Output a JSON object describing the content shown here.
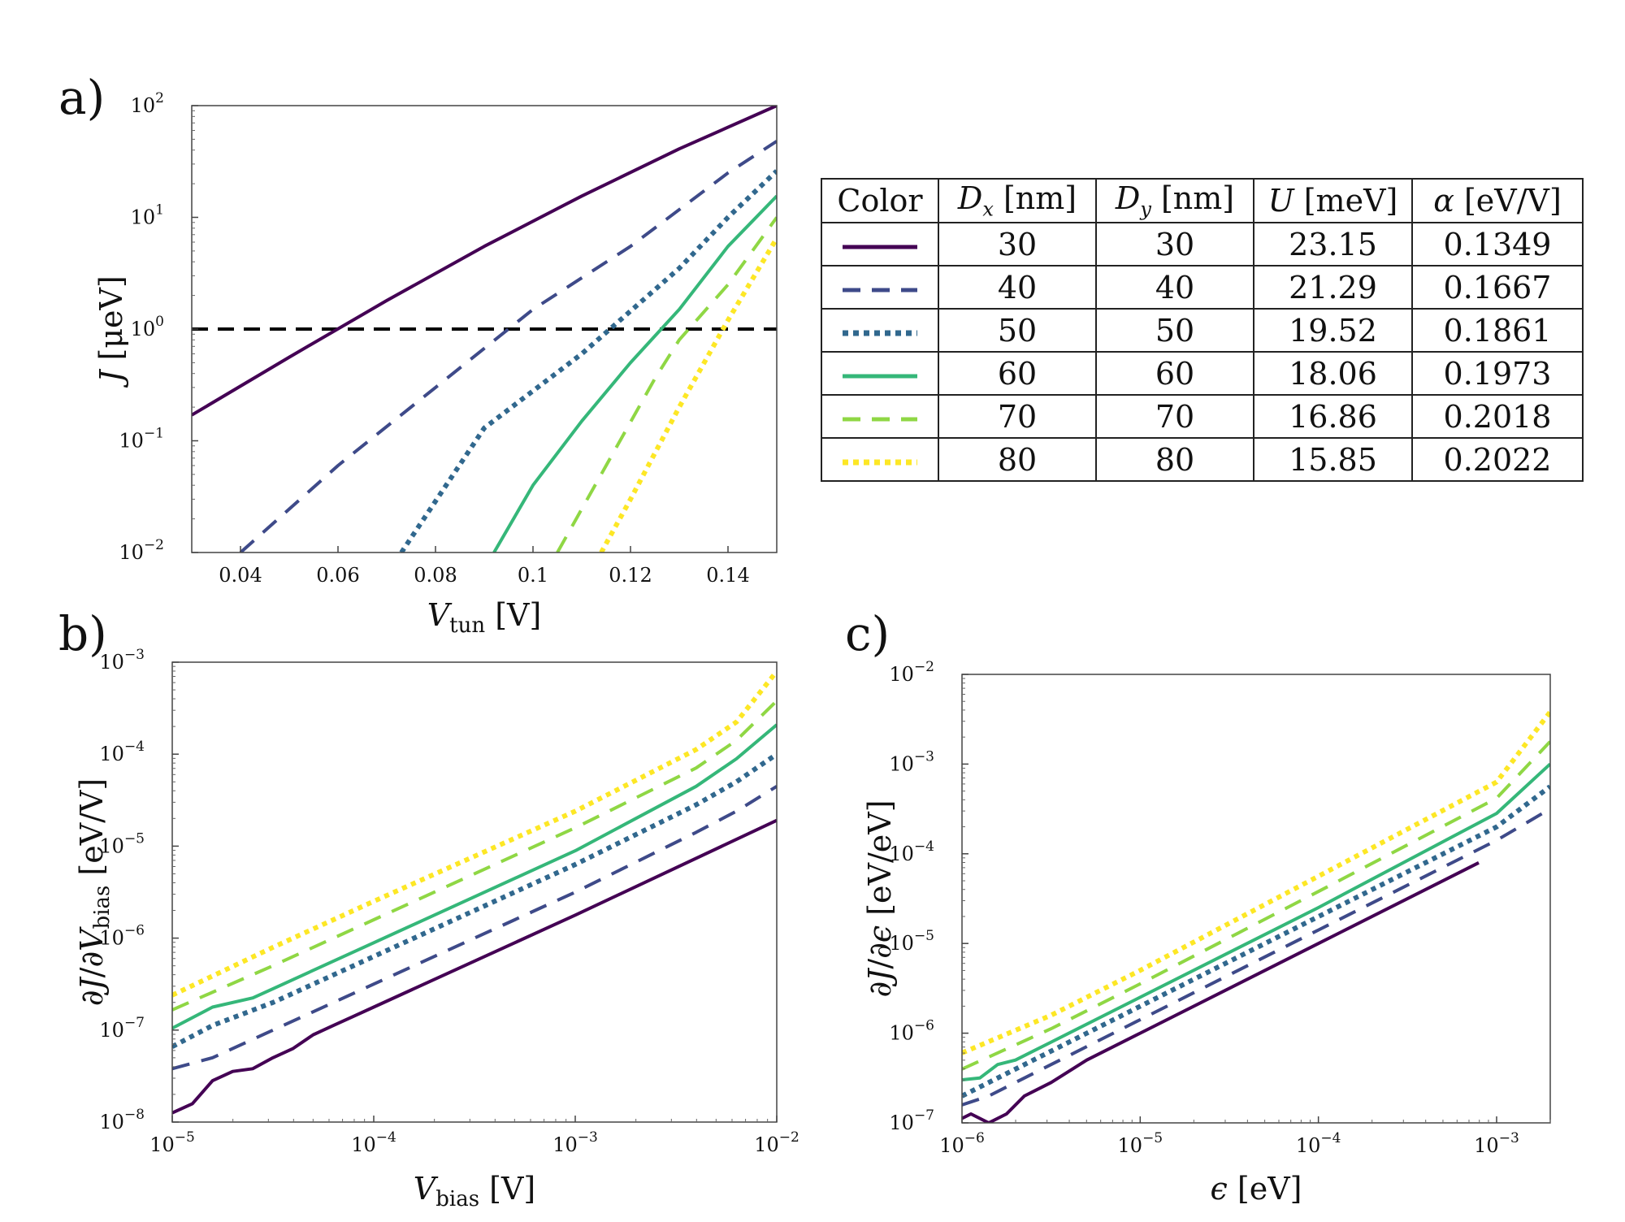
{
  "panel_labels": {
    "a": "a)",
    "b": "b)",
    "c": "c)"
  },
  "colors": [
    "#440154",
    "#3e4a89",
    "#31688e",
    "#35b779",
    "#8fd744",
    "#fde725"
  ],
  "table": {
    "headers": [
      "Color",
      "Dx [nm]",
      "Dy [nm]",
      "U [meV]",
      "α [eV/V]"
    ],
    "rows": [
      {
        "style": "solid",
        "dx": "30",
        "dy": "30",
        "u": "23.15",
        "alpha": "0.1349"
      },
      {
        "style": "dashed",
        "dx": "40",
        "dy": "40",
        "u": "21.29",
        "alpha": "0.1667"
      },
      {
        "style": "dotted",
        "dx": "50",
        "dy": "50",
        "u": "19.52",
        "alpha": "0.1861"
      },
      {
        "style": "solid",
        "dx": "60",
        "dy": "60",
        "u": "18.06",
        "alpha": "0.1973"
      },
      {
        "style": "dashed",
        "dx": "70",
        "dy": "70",
        "u": "16.86",
        "alpha": "0.2018"
      },
      {
        "style": "dotted",
        "dx": "80",
        "dy": "80",
        "u": "15.85",
        "alpha": "0.2022"
      }
    ]
  },
  "chart_data": [
    {
      "id": "a",
      "type": "line",
      "xscale": "linear",
      "yscale": "log",
      "xlim": [
        0.03,
        0.15
      ],
      "ylim": [
        0.01,
        100
      ],
      "xlabel": "Vtun [V]",
      "ylabel": "J [μeV]",
      "xticks": [
        0.04,
        0.06,
        0.08,
        0.1,
        0.12,
        0.14
      ],
      "xticklabels": [
        "0.04",
        "0.06",
        "0.08",
        "0.1",
        "0.12",
        "0.14"
      ],
      "yticks": [
        -2,
        -1,
        0,
        1,
        2
      ],
      "reference_line": {
        "y": 1,
        "style": "dashed",
        "color": "#000000"
      },
      "series": [
        {
          "name": "30",
          "style": "solid",
          "x": [
            0.03,
            0.05,
            0.07,
            0.09,
            0.11,
            0.13,
            0.15
          ],
          "y": [
            0.17,
            0.56,
            1.8,
            5.5,
            15.5,
            41,
            100
          ]
        },
        {
          "name": "40",
          "style": "dashed",
          "x": [
            0.04,
            0.06,
            0.08,
            0.1,
            0.12,
            0.14,
            0.15
          ],
          "y": [
            0.01,
            0.06,
            0.3,
            1.5,
            5.5,
            25,
            48
          ]
        },
        {
          "name": "50",
          "style": "dotted",
          "x": [
            0.073,
            0.09,
            0.11,
            0.13,
            0.14,
            0.15
          ],
          "y": [
            0.01,
            0.13,
            0.6,
            3.5,
            10,
            26
          ]
        },
        {
          "name": "60",
          "style": "solid",
          "x": [
            0.092,
            0.1,
            0.11,
            0.12,
            0.13,
            0.14,
            0.15
          ],
          "y": [
            0.01,
            0.04,
            0.15,
            0.5,
            1.5,
            5.5,
            15.5
          ]
        },
        {
          "name": "70",
          "style": "dashed",
          "x": [
            0.105,
            0.115,
            0.125,
            0.13,
            0.14,
            0.15
          ],
          "y": [
            0.01,
            0.06,
            0.36,
            0.8,
            2.5,
            10
          ]
        },
        {
          "name": "80",
          "style": "dotted",
          "x": [
            0.114,
            0.12,
            0.13,
            0.14,
            0.15
          ],
          "y": [
            0.01,
            0.03,
            0.2,
            1.2,
            6.5
          ]
        }
      ]
    },
    {
      "id": "b",
      "type": "line",
      "xscale": "log",
      "yscale": "log",
      "xlim": [
        1e-05,
        0.01
      ],
      "ylim": [
        1e-08,
        0.001
      ],
      "xlabel": "Vbias [V]",
      "ylabel": "∂J/∂Vbias [eV/V]",
      "xticks": [
        -5,
        -4,
        -3,
        -2
      ],
      "yticks": [
        -8,
        -7,
        -6,
        -5,
        -4,
        -3
      ],
      "series": [
        {
          "name": "30",
          "style": "solid",
          "logx": [
            -5,
            -4.9,
            -4.8,
            -4.7,
            -4.6,
            -4.5,
            -4.4,
            -4.3,
            -4.2,
            -4.1,
            -4.0,
            -3.0,
            -2.0
          ],
          "logy": [
            -7.9,
            -7.8,
            -7.55,
            -7.45,
            -7.42,
            -7.3,
            -7.2,
            -7.05,
            -6.95,
            -6.85,
            -6.75,
            -5.75,
            -4.72
          ]
        },
        {
          "name": "40",
          "style": "dashed",
          "logx": [
            -5,
            -4.8,
            -4.5,
            -4.0,
            -3.0,
            -2.4,
            -2.2,
            -2.0
          ],
          "logy": [
            -7.42,
            -7.3,
            -7.0,
            -6.5,
            -5.5,
            -4.85,
            -4.62,
            -4.35
          ]
        },
        {
          "name": "50",
          "style": "dotted",
          "logx": [
            -5,
            -4.8,
            -4.5,
            -4.0,
            -3.0,
            -2.4,
            -2.2,
            -2.0
          ],
          "logy": [
            -7.18,
            -6.95,
            -6.7,
            -6.2,
            -5.2,
            -4.55,
            -4.3,
            -4.0
          ]
        },
        {
          "name": "60",
          "style": "solid",
          "logx": [
            -5,
            -4.8,
            -4.6,
            -4.5,
            -4.0,
            -3.0,
            -2.4,
            -2.2,
            -2.0
          ],
          "logy": [
            -6.98,
            -6.75,
            -6.65,
            -6.55,
            -6.05,
            -5.05,
            -4.35,
            -4.05,
            -3.68
          ]
        },
        {
          "name": "70",
          "style": "dashed",
          "logx": [
            -5,
            -4.5,
            -4.0,
            -3.0,
            -2.4,
            -2.2,
            -2.0
          ],
          "logy": [
            -6.78,
            -6.3,
            -5.8,
            -4.8,
            -4.15,
            -3.85,
            -3.42
          ]
        },
        {
          "name": "80",
          "style": "dotted",
          "logx": [
            -5,
            -4.5,
            -4.0,
            -3.0,
            -2.4,
            -2.2,
            -2.0
          ],
          "logy": [
            -6.62,
            -6.1,
            -5.6,
            -4.62,
            -3.95,
            -3.65,
            -3.1
          ]
        }
      ]
    },
    {
      "id": "c",
      "type": "line",
      "xscale": "log",
      "yscale": "log",
      "xlim": [
        1e-06,
        0.002
      ],
      "ylim": [
        1e-07,
        0.01
      ],
      "xlabel": "ϵ [eV]",
      "ylabel": "∂J/∂ϵ [eV/eV]",
      "xticks": [
        -6,
        -5,
        -4,
        -3
      ],
      "yticks": [
        -7,
        -6,
        -5,
        -4,
        -3,
        -2
      ],
      "series": [
        {
          "name": "30",
          "style": "solid",
          "logx": [
            -6,
            -5.95,
            -5.85,
            -5.75,
            -5.65,
            -5.5,
            -5.3,
            -5.0,
            -4.0,
            -3.1
          ],
          "logy": [
            -6.95,
            -6.9,
            -7.0,
            -6.9,
            -6.7,
            -6.55,
            -6.3,
            -6.0,
            -5.0,
            -4.1
          ]
        },
        {
          "name": "40",
          "style": "dashed",
          "logx": [
            -6,
            -5.85,
            -5.7,
            -5.5,
            -5.0,
            -4.0,
            -3.0,
            -2.7
          ],
          "logy": [
            -6.8,
            -6.7,
            -6.55,
            -6.35,
            -5.85,
            -4.85,
            -3.85,
            -3.5
          ]
        },
        {
          "name": "50",
          "style": "dotted",
          "logx": [
            -6,
            -5.85,
            -5.7,
            -5.5,
            -5.0,
            -4.0,
            -3.0,
            -2.7
          ],
          "logy": [
            -6.7,
            -6.55,
            -6.4,
            -6.2,
            -5.7,
            -4.7,
            -3.7,
            -3.25
          ]
        },
        {
          "name": "60",
          "style": "solid",
          "logx": [
            -6,
            -5.9,
            -5.8,
            -5.7,
            -5.5,
            -5.0,
            -4.0,
            -3.0,
            -2.7
          ],
          "logy": [
            -6.52,
            -6.5,
            -6.35,
            -6.3,
            -6.1,
            -5.6,
            -4.6,
            -3.55,
            -3.0
          ]
        },
        {
          "name": "70",
          "style": "dashed",
          "logx": [
            -6,
            -5.5,
            -5.0,
            -4.0,
            -3.0,
            -2.7
          ],
          "logy": [
            -6.4,
            -5.95,
            -5.45,
            -4.42,
            -3.38,
            -2.75
          ]
        },
        {
          "name": "80",
          "style": "dotted",
          "logx": [
            -6,
            -5.5,
            -5.0,
            -4.0,
            -3.0,
            -2.7
          ],
          "logy": [
            -6.22,
            -5.8,
            -5.3,
            -4.25,
            -3.2,
            -2.42
          ]
        }
      ]
    }
  ]
}
